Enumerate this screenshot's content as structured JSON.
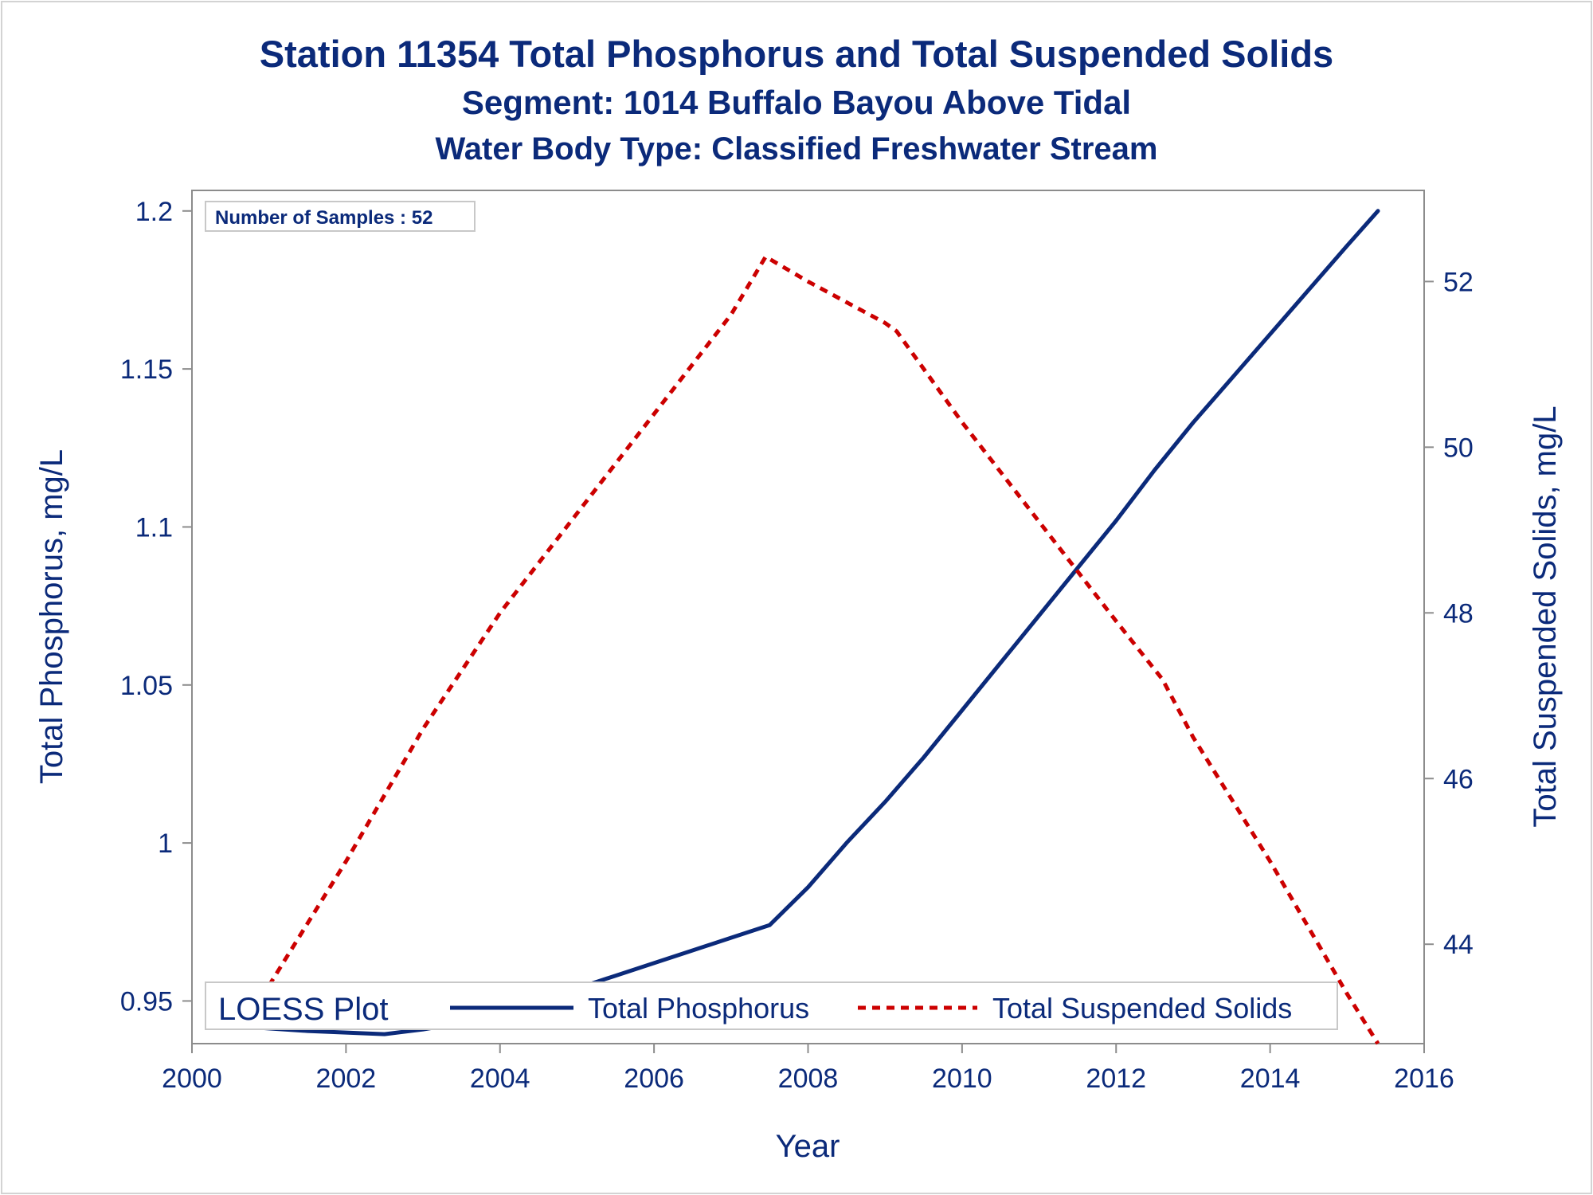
{
  "titles": {
    "line1": "Station 11354  Total Phosphorus and Total Suspended Solids",
    "line2": "Segment: 1014  Buffalo Bayou Above Tidal",
    "line3": "Water Body Type: Classified Freshwater Stream"
  },
  "inset": "Number of Samples : 52",
  "colors": {
    "text": "#0b2a7a",
    "phosphorus": "#0b2a7a",
    "tss": "#cc0000",
    "frame": "#8c8c8c"
  },
  "chart_data": {
    "type": "line",
    "xlabel": "Year",
    "ylabel_left": "Total Phosphorus, mg/L",
    "ylabel_right": "Total Suspended Solids, mg/L",
    "xlim": [
      2000,
      2016
    ],
    "ylim_left": [
      0.9365,
      1.2065
    ],
    "ylim_right": [
      42.8,
      53.1
    ],
    "xticks": [
      "2000",
      "2002",
      "2004",
      "2006",
      "2008",
      "2010",
      "2012",
      "2014",
      "2016"
    ],
    "yticks_left": [
      "0.95",
      "1",
      "1.05",
      "1.1",
      "1.15",
      "1.2"
    ],
    "yticks_right": [
      "44",
      "46",
      "48",
      "50",
      "52"
    ],
    "legend": {
      "title": "LOESS Plot",
      "position": "bottom-left inside",
      "entries": [
        "Total Phosphorus",
        "Total Suspended Solids"
      ]
    },
    "series": [
      {
        "name": "Total Phosphorus",
        "axis": "left",
        "style": "solid",
        "x": [
          2000.9,
          2001.5,
          2002.0,
          2002.5,
          2003.0,
          2003.5,
          2004.0,
          2004.5,
          2005.0,
          2005.5,
          2006.0,
          2006.5,
          2007.0,
          2007.5,
          2008.0,
          2008.5,
          2009.0,
          2009.5,
          2010.0,
          2010.5,
          2011.0,
          2011.5,
          2012.0,
          2012.5,
          2013.0,
          2013.5,
          2014.0,
          2014.5,
          2015.0,
          2015.4
        ],
        "y": [
          0.9415,
          0.9405,
          0.94,
          0.9395,
          0.941,
          0.943,
          0.946,
          0.95,
          0.954,
          0.958,
          0.962,
          0.966,
          0.97,
          0.974,
          0.986,
          1.0,
          1.013,
          1.027,
          1.042,
          1.057,
          1.072,
          1.087,
          1.102,
          1.118,
          1.133,
          1.147,
          1.161,
          1.175,
          1.189,
          1.2
        ]
      },
      {
        "name": "Total Suspended Solids",
        "axis": "right",
        "style": "dashed",
        "x": [
          2001.0,
          2002.0,
          2003.0,
          2004.0,
          2005.0,
          2006.0,
          2007.0,
          2007.45,
          2008.0,
          2009.0,
          2009.15,
          2010.0,
          2011.0,
          2012.0,
          2012.6,
          2013.0,
          2014.0,
          2015.0,
          2015.4
        ],
        "y": [
          43.5,
          45.0,
          46.6,
          48.0,
          49.2,
          50.4,
          51.6,
          52.3,
          52.0,
          51.5,
          51.4,
          50.3,
          49.1,
          47.9,
          47.2,
          46.5,
          45.0,
          43.4,
          42.8
        ]
      }
    ]
  }
}
